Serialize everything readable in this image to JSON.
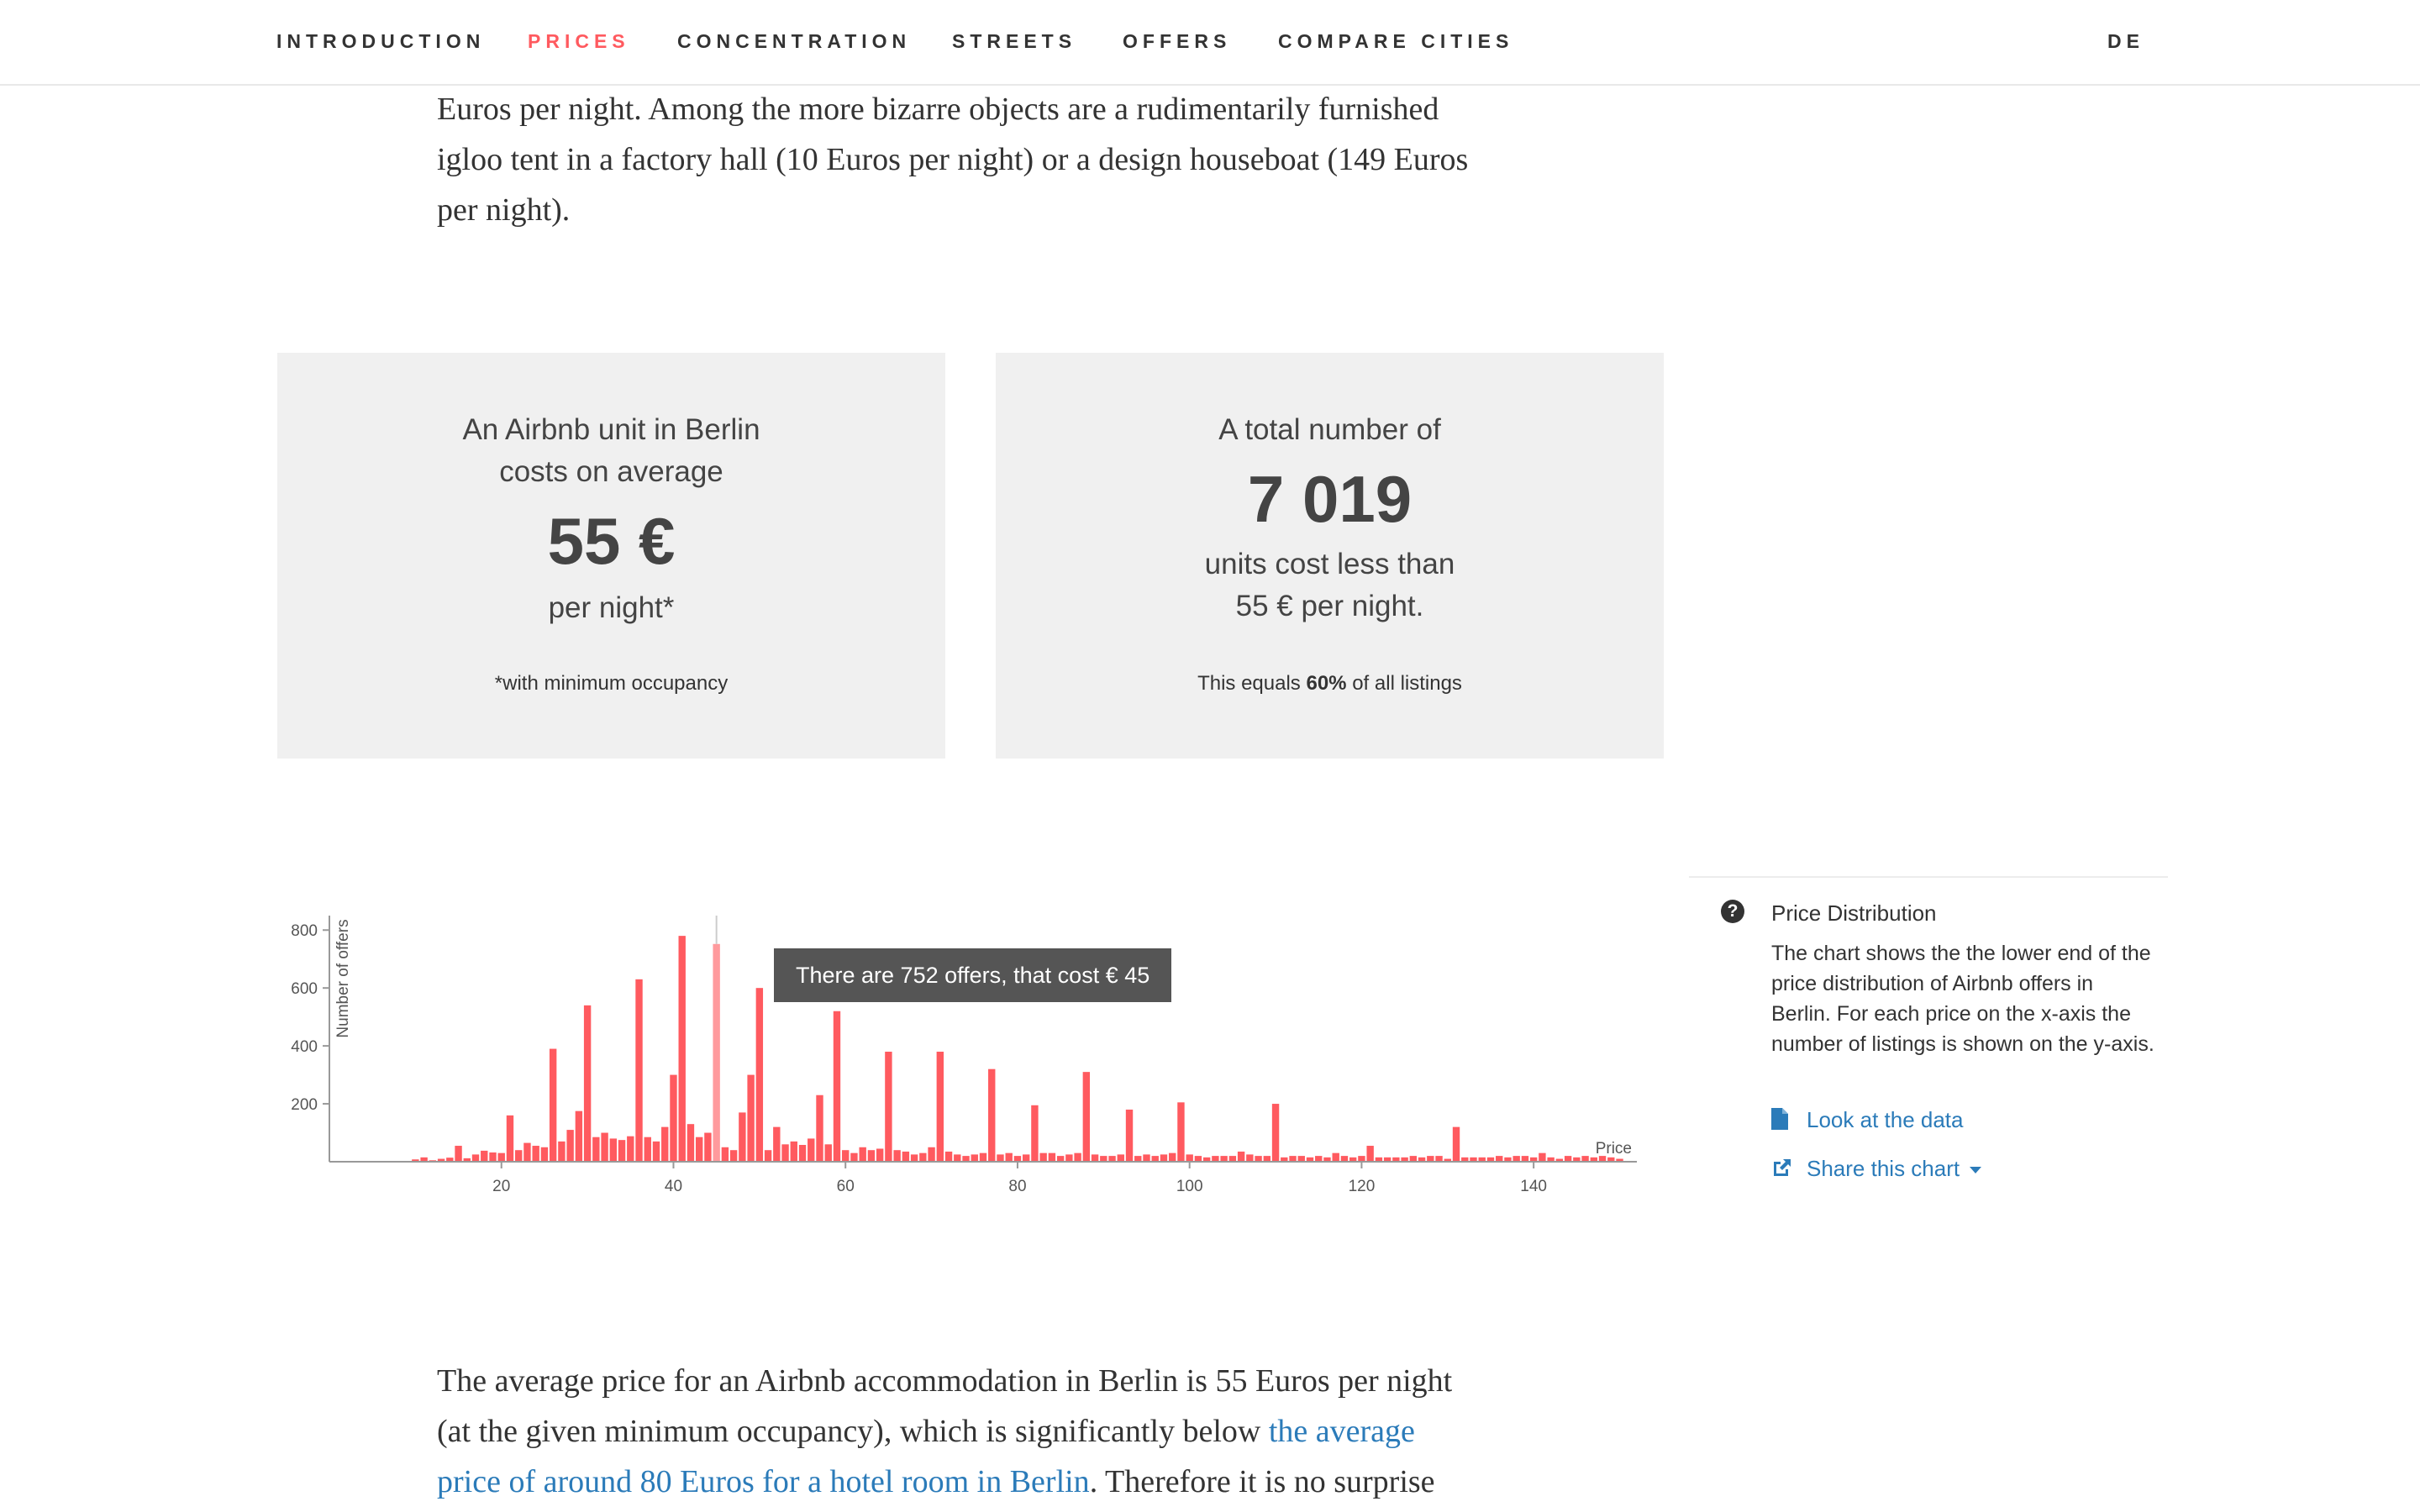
{
  "nav": {
    "items": [
      {
        "label": "INTRODUCTION",
        "active": false
      },
      {
        "label": "PRICES",
        "active": true
      },
      {
        "label": "CONCENTRATION",
        "active": false
      },
      {
        "label": "STREETS",
        "active": false
      },
      {
        "label": "OFFERS",
        "active": false
      },
      {
        "label": "COMPARE CITIES",
        "active": false
      }
    ],
    "language": "DE"
  },
  "intro": {
    "lines": [
      "Euros per night. Among the more bizarre objects are a rudimentarily furnished",
      "igloo tent in a factory hall (10 Euros per night) or a design houseboat (149 Euros",
      "per night)."
    ]
  },
  "stats": {
    "average": {
      "line1": "An Airbnb unit in Berlin",
      "line2": "costs on average",
      "value": "55 €",
      "line3": "per night*",
      "note": "*with minimum occupancy"
    },
    "count": {
      "line1": "A total number of",
      "value": "7 019",
      "line2": "units cost less than",
      "line3": "55 € per night.",
      "note_prefix": "This equals ",
      "note_bold": "60%",
      "note_suffix": " of all listings"
    }
  },
  "chart_data": {
    "type": "bar",
    "ylabel": "Number of offers",
    "xlabel": "Price",
    "xlim": [
      0,
      152
    ],
    "ylim": [
      0,
      850
    ],
    "x_ticks": [
      20,
      40,
      60,
      80,
      100,
      120,
      140
    ],
    "y_ticks": [
      200,
      400,
      600,
      800
    ],
    "highlight_price": 45,
    "tooltip": "There are 752 offers, that cost € 45",
    "bar_color": "#ff5a5f",
    "highlight_color": "#ff9a9d",
    "x": [
      10,
      11,
      12,
      13,
      14,
      15,
      16,
      17,
      18,
      19,
      20,
      21,
      22,
      23,
      24,
      25,
      26,
      27,
      28,
      29,
      30,
      31,
      32,
      33,
      34,
      35,
      36,
      37,
      38,
      39,
      40,
      41,
      42,
      43,
      44,
      45,
      46,
      47,
      48,
      49,
      50,
      51,
      52,
      53,
      54,
      55,
      56,
      57,
      58,
      59,
      60,
      61,
      62,
      63,
      64,
      65,
      66,
      67,
      68,
      69,
      70,
      71,
      72,
      73,
      74,
      75,
      76,
      77,
      78,
      79,
      80,
      81,
      82,
      83,
      84,
      85,
      86,
      87,
      88,
      89,
      90,
      91,
      92,
      93,
      94,
      95,
      96,
      97,
      98,
      99,
      100,
      101,
      102,
      103,
      104,
      105,
      106,
      107,
      108,
      109,
      110,
      111,
      112,
      113,
      114,
      115,
      116,
      117,
      118,
      119,
      120,
      121,
      122,
      123,
      124,
      125,
      126,
      127,
      128,
      129,
      130,
      131,
      132,
      133,
      134,
      135,
      136,
      137,
      138,
      139,
      140,
      141,
      142,
      143,
      144,
      145,
      146,
      147,
      148,
      149,
      150
    ],
    "values": [
      8,
      15,
      5,
      10,
      14,
      55,
      12,
      25,
      38,
      32,
      30,
      160,
      40,
      65,
      55,
      50,
      390,
      70,
      110,
      175,
      540,
      85,
      100,
      80,
      75,
      88,
      630,
      85,
      70,
      120,
      300,
      780,
      130,
      85,
      100,
      752,
      50,
      40,
      170,
      300,
      600,
      40,
      120,
      60,
      70,
      58,
      80,
      230,
      60,
      520,
      40,
      30,
      50,
      40,
      45,
      380,
      40,
      35,
      25,
      30,
      50,
      380,
      35,
      25,
      20,
      25,
      30,
      320,
      25,
      30,
      20,
      25,
      195,
      30,
      30,
      20,
      25,
      30,
      310,
      25,
      20,
      20,
      25,
      180,
      20,
      25,
      20,
      25,
      30,
      205,
      25,
      20,
      15,
      20,
      20,
      20,
      35,
      25,
      20,
      20,
      200,
      15,
      20,
      20,
      15,
      20,
      15,
      30,
      20,
      15,
      20,
      55,
      15,
      15,
      15,
      15,
      20,
      15,
      20,
      20,
      10,
      120,
      15,
      15,
      15,
      15,
      20,
      15,
      20,
      20,
      15,
      30,
      15,
      10,
      20,
      15,
      20,
      15,
      20,
      15,
      10
    ],
    "x_tick_labels": [
      "20",
      "40",
      "60",
      "80",
      "100",
      "120",
      "140"
    ],
    "y_tick_labels": [
      "800",
      "600",
      "400",
      "200"
    ]
  },
  "side": {
    "title": "Price Distribution",
    "description": "The chart shows the the lower end of the price distribution of Airbnb offers in Berlin. For each price on the x-axis the number of listings is shown on the y-axis.",
    "data_link": "Look at the data",
    "share_link": "Share this chart",
    "icons": {
      "help": "question-circle-icon",
      "data": "file-icon",
      "share": "share-icon"
    }
  },
  "body": {
    "text1": "The average price for an Airbnb accommodation in Berlin is 55 Euros per night",
    "text2": "(at the given minimum occupancy), which is significantly below ",
    "link1": "the average",
    "link2": "price of around 80 Euros for a hotel room in Berlin",
    "text3": ". Therefore it is no surprise"
  }
}
